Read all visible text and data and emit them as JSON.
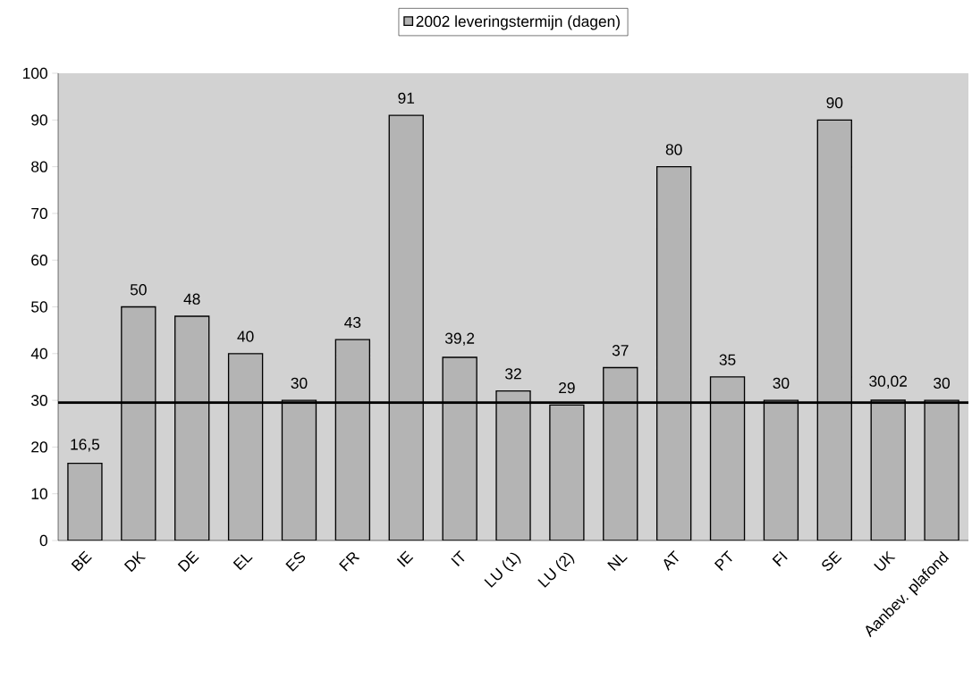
{
  "chart_data": {
    "type": "bar",
    "categories": [
      "BE",
      "DK",
      "DE",
      "EL",
      "ES",
      "FR",
      "IE",
      "IT",
      "LU (1)",
      "LU (2)",
      "NL",
      "AT",
      "PT",
      "FI",
      "SE",
      "UK",
      "Aanbev. plafond"
    ],
    "series": [
      {
        "name": "2002 leveringstermijn (dagen)",
        "color": "#b4b4b4",
        "values": [
          16.5,
          50,
          48,
          40,
          30,
          43,
          91,
          39.2,
          32,
          29,
          37,
          80,
          35,
          30,
          90,
          30.02,
          30
        ],
        "value_labels": [
          "16,5",
          "50",
          "48",
          "40",
          "30",
          "43",
          "91",
          "39,2",
          "32",
          "29",
          "37",
          "80",
          "35",
          "30",
          "90",
          "30,02",
          "30"
        ]
      }
    ],
    "ylim": [
      0,
      100
    ],
    "yticks": [
      0,
      10,
      20,
      30,
      40,
      50,
      60,
      70,
      80,
      90,
      100
    ],
    "ref_lines": [
      {
        "axis": "y",
        "value": 29.5,
        "color": "#000000"
      }
    ],
    "legend": "top",
    "grid": false
  }
}
